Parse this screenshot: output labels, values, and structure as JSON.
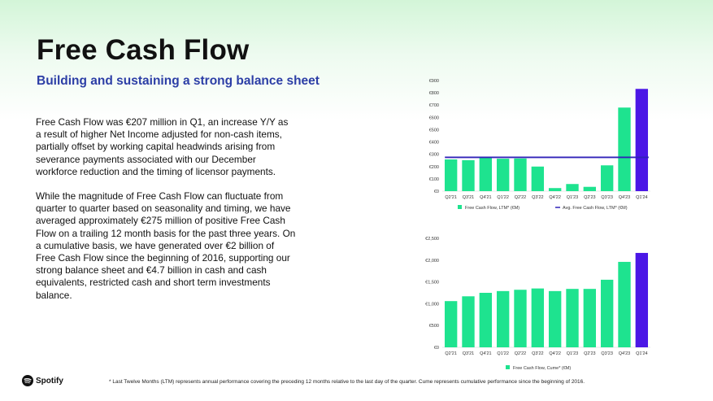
{
  "header": {
    "title": "Free Cash Flow",
    "subtitle": "Building and sustaining a strong balance sheet"
  },
  "body": {
    "paragraph1": "Free Cash Flow was €207 million in Q1, an increase Y/Y as a result of higher Net Income adjusted for non-cash items, partially offset by working capital headwinds arising from severance payments associated with our December workforce reduction and the timing of licensor payments.",
    "paragraph2": "While the magnitude of Free Cash Flow can fluctuate from quarter to quarter based on seasonality and timing, we have averaged approximately €275 million of positive Free Cash Flow on a trailing 12 month basis for the past three years. On a cumulative basis, we have generated over €2 billion of Free Cash Flow since the beginning of 2016, supporting our strong balance sheet and €4.7 billion in cash and cash equivalents, restricted cash and short term investments balance."
  },
  "footer": {
    "logo_text": "Spotify",
    "footnote": "* Last Twelve Months (LTM) represents annual performance covering the preceding 12 months relative to the last day of the quarter. Cume represents cumulative performance since the beginning of 2016."
  },
  "colors": {
    "bar_green": "#1ee38f",
    "last_bar_purple": "#4b17e6",
    "avg_line": "#3023b8",
    "subtitle_blue": "#2c3ea6"
  },
  "chart_data": [
    {
      "type": "bar",
      "categories": [
        "Q2'21",
        "Q3'21",
        "Q4'21",
        "Q1'22",
        "Q2'22",
        "Q3'22",
        "Q4'22",
        "Q1'23",
        "Q2'23",
        "Q3'23",
        "Q4'23",
        "Q1'24"
      ],
      "series": [
        {
          "name": "Free Cash Flow, LTM* (€M)",
          "values": [
            258,
            252,
            280,
            264,
            266,
            200,
            25,
            58,
            35,
            210,
            680,
            832
          ]
        },
        {
          "name": "Avg. Free Cash Flow, LTM* (€M)",
          "type": "line",
          "values": [
            275,
            275,
            275,
            275,
            275,
            275,
            275,
            275,
            275,
            275,
            275,
            275
          ]
        }
      ],
      "y_ticks": [
        "€0",
        "€100",
        "€200",
        "€300",
        "€400",
        "€500",
        "€600",
        "€700",
        "€800",
        "€900"
      ],
      "ylim": [
        0,
        900
      ],
      "highlight_last": true,
      "legend": "bottom"
    },
    {
      "type": "bar",
      "categories": [
        "Q2'21",
        "Q3'21",
        "Q4'21",
        "Q1'22",
        "Q2'22",
        "Q3'22",
        "Q4'22",
        "Q1'23",
        "Q2'23",
        "Q3'23",
        "Q4'23",
        "Q1'24"
      ],
      "series": [
        {
          "name": "Free Cash Flow, Cume* (€M)",
          "values": [
            1060,
            1170,
            1250,
            1290,
            1320,
            1350,
            1290,
            1340,
            1340,
            1550,
            1960,
            2165
          ]
        }
      ],
      "y_ticks": [
        "€0",
        "€500",
        "€1,000",
        "€1,500",
        "€2,000",
        "€2,500"
      ],
      "ylim": [
        0,
        2500
      ],
      "highlight_last": true,
      "legend": "bottom"
    }
  ]
}
